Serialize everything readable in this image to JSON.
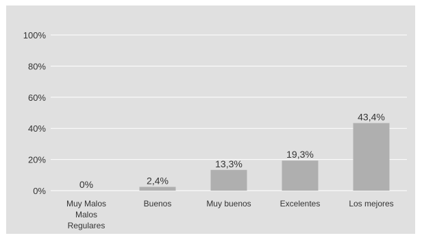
{
  "colors": {
    "background": "#e0e0e0",
    "bar": "#afafaf",
    "grid": "#ffffff",
    "text": "#333333"
  },
  "chart_data": {
    "type": "bar",
    "categories": [
      [
        "Muy Malos",
        "Malos",
        "Regulares"
      ],
      [
        "Buenos"
      ],
      [
        "Muy buenos"
      ],
      [
        "Excelentes"
      ],
      [
        "Los mejores"
      ]
    ],
    "values": [
      0,
      2.4,
      13.3,
      19.3,
      43.4
    ],
    "data_labels": [
      "0%",
      "2,4%",
      "13,3%",
      "19,3%",
      "43,4%"
    ],
    "y_ticks": [
      0,
      20,
      40,
      60,
      80,
      100
    ],
    "y_tick_labels": [
      "0%",
      "20%",
      "40%",
      "60%",
      "80%",
      "100%"
    ],
    "ylim": [
      0,
      100
    ],
    "grid": true,
    "legend": "none",
    "title": "",
    "xlabel": "",
    "ylabel": ""
  }
}
